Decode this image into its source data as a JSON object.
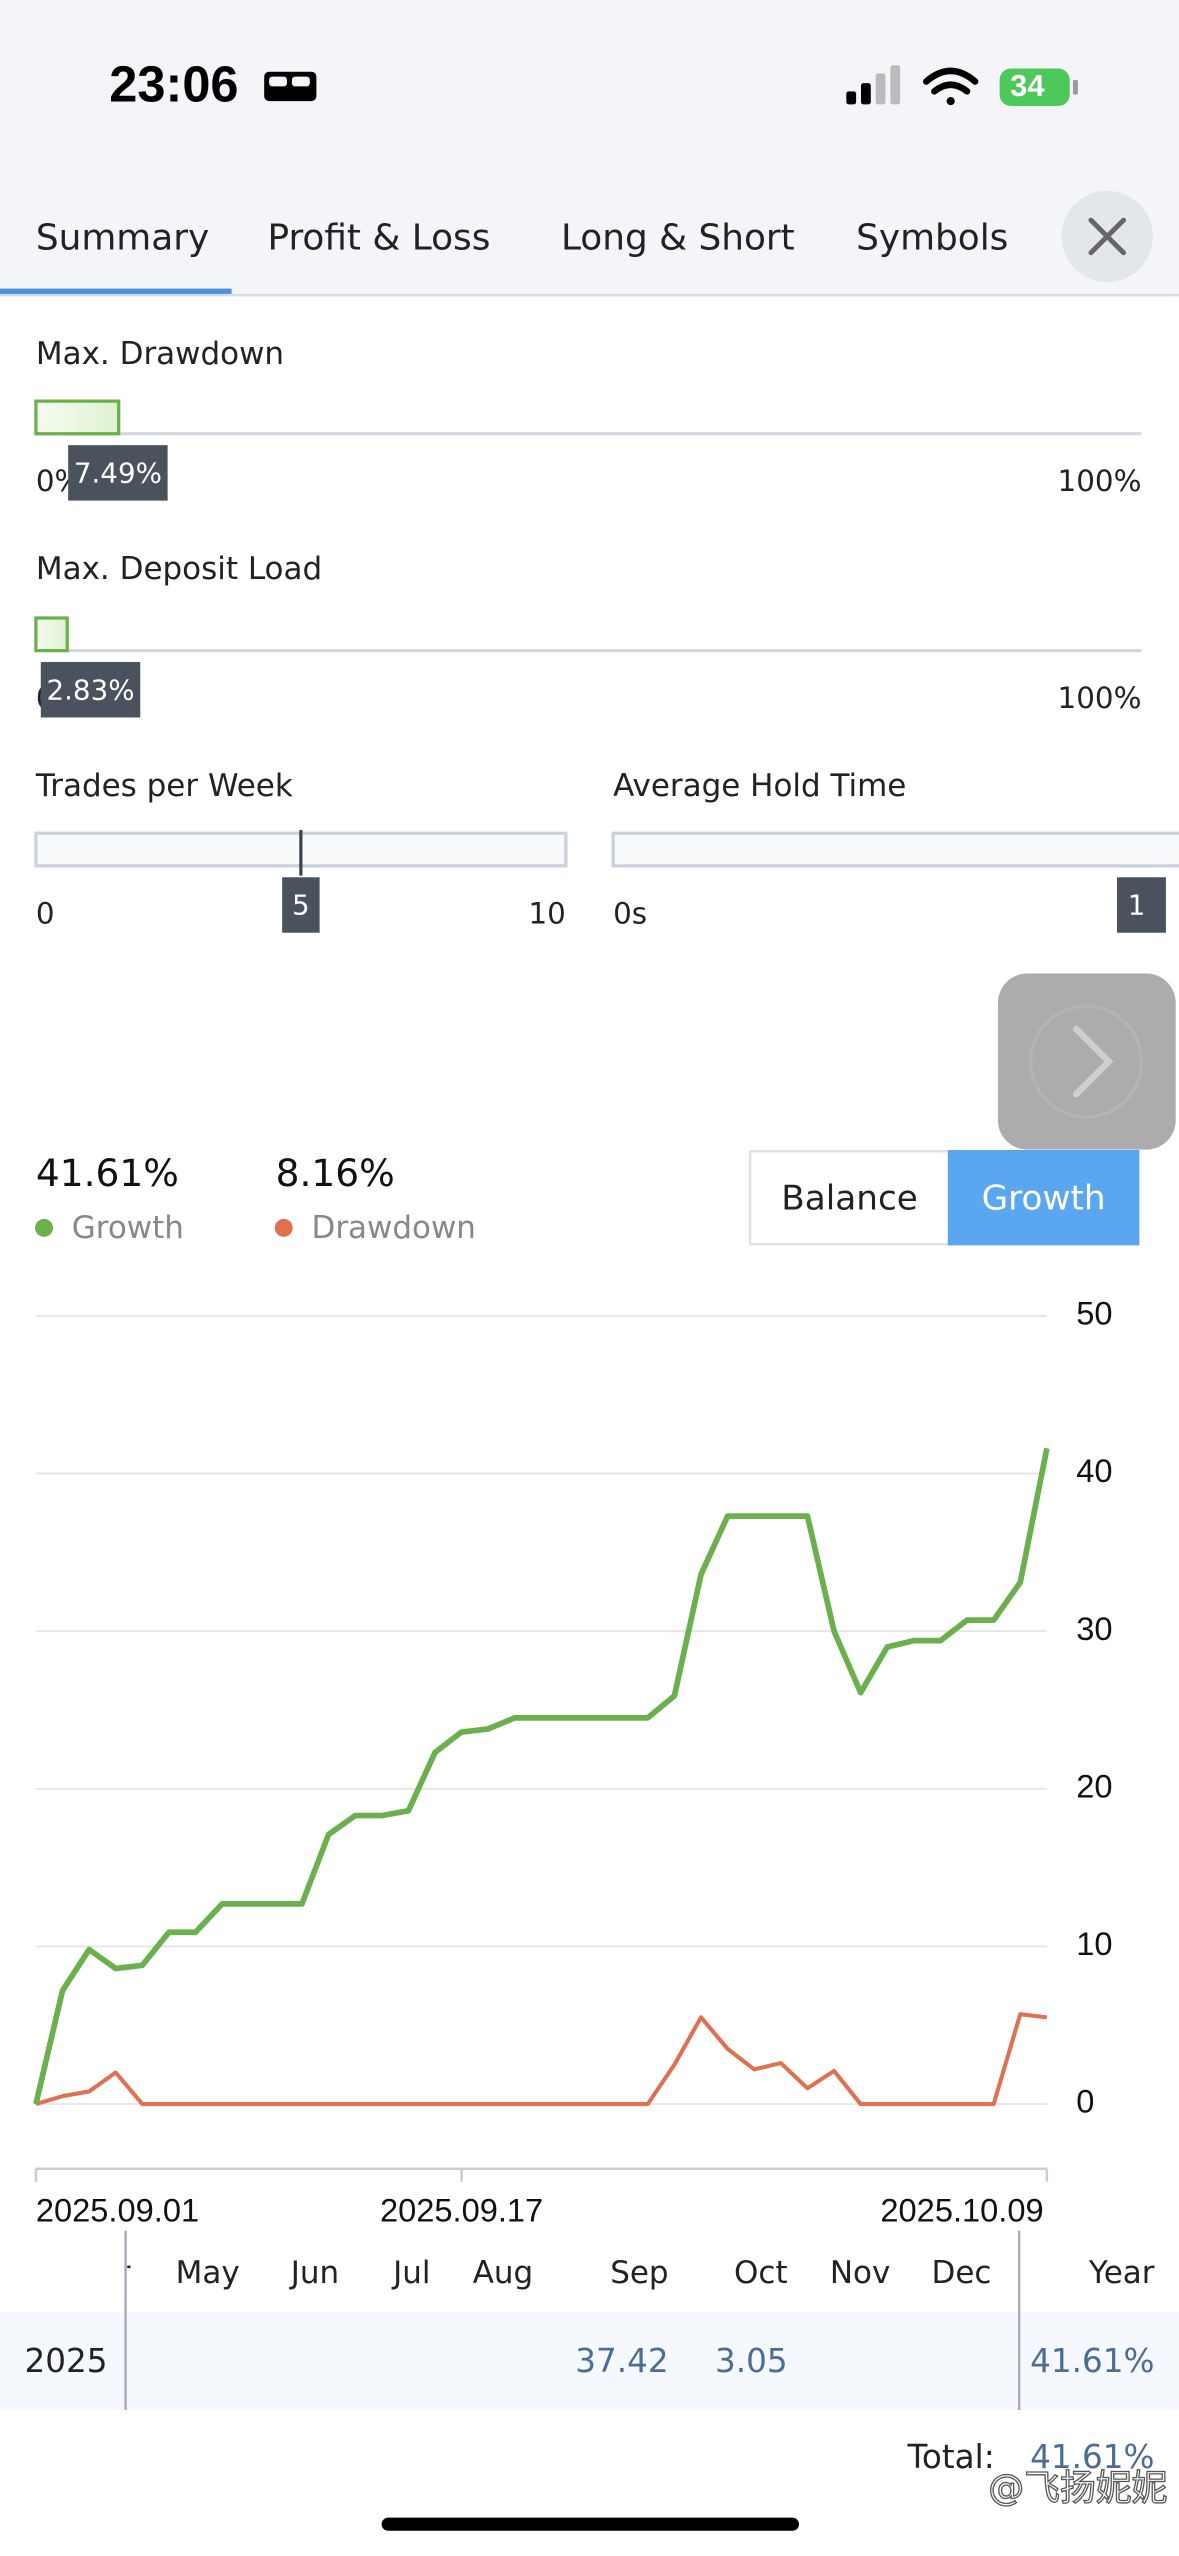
{
  "status_bar": {
    "time": "23:06",
    "battery": "34"
  },
  "tabs": [
    "Summary",
    "Profit & Loss",
    "Long & Short",
    "Symbols"
  ],
  "active_tab": 0,
  "sliders": [
    {
      "label": "Max. Drawdown",
      "value": 7.49,
      "value_label": "7.49%",
      "ticks": [
        {
          "value": 0,
          "label": "0%"
        },
        {
          "value": 100,
          "label": "100%"
        }
      ]
    },
    {
      "label": "Max. Deposit Load",
      "value": 2.83,
      "value_label": "2.83%",
      "ticks": [
        {
          "value": 0,
          "label": "0%"
        },
        {
          "value": 100,
          "label": "100%"
        }
      ]
    },
    {
      "label": "Trades per Week",
      "value": 5,
      "ticks": [
        0,
        10
      ]
    },
    {
      "label": "Average Hold Time",
      "tooltip": "1",
      "ticks": [
        {
          "value": 0,
          "label": "0s"
        }
      ]
    }
  ],
  "toggle": {
    "options": [
      "Balance",
      "Growth"
    ],
    "active": 1
  },
  "chart": {
    "type": "line",
    "x": [
      "2025.09.01",
      "2025.09.02",
      "2025.09.03",
      "2025.09.04",
      "2025.09.05",
      "2025.09.06",
      "2025.09.07",
      "2025.09.08",
      "2025.09.09",
      "2025.09.10",
      "2025.09.11",
      "2025.09.12",
      "2025.09.13",
      "2025.09.14",
      "2025.09.15",
      "2025.09.16",
      "2025.09.17",
      "2025.09.18",
      "2025.09.19",
      "2025.09.20",
      "2025.09.21",
      "2025.09.22",
      "2025.09.23",
      "2025.09.24",
      "2025.09.25",
      "2025.09.26",
      "2025.09.27",
      "2025.09.28",
      "2025.09.29",
      "2025.09.30",
      "2025.10.01",
      "2025.10.02",
      "2025.10.03",
      "2025.10.04",
      "2025.10.05",
      "2025.10.06",
      "2025.10.07",
      "2025.10.08",
      "2025.10.09"
    ],
    "xlim": [
      "2025.09.01",
      "2025.10.09"
    ],
    "xticks": [
      "2025.09.01",
      "2025.09.17",
      "2025.10.09"
    ],
    "ylim": [
      -4,
      50
    ],
    "yticks": [
      0,
      10,
      20,
      30,
      40,
      50
    ],
    "grid": true,
    "series": [
      {
        "name": "Growth",
        "color": "#6ab04c",
        "summary": 41.61,
        "summary_label": "41.61%",
        "values": [
          0,
          7.2,
          9.8,
          8.6,
          8.8,
          10.9,
          10.9,
          12.7,
          12.7,
          12.7,
          12.7,
          17.1,
          18.3,
          18.3,
          18.6,
          22.3,
          23.6,
          23.8,
          24.5,
          24.5,
          24.5,
          24.5,
          24.5,
          24.5,
          25.9,
          33.6,
          37.3,
          37.3,
          37.3,
          37.3,
          30.0,
          26.1,
          29.0,
          29.4,
          29.4,
          30.7,
          30.7,
          33.1,
          41.6
        ]
      },
      {
        "name": "Drawdown",
        "color": "#e07050",
        "summary": 8.16,
        "summary_label": "8.16%",
        "values": [
          0,
          0.5,
          0.8,
          2.0,
          0,
          0,
          0,
          0,
          0,
          0,
          0,
          0,
          0,
          0,
          0,
          0,
          0,
          0,
          0,
          0,
          0,
          0,
          0,
          0,
          2.5,
          5.5,
          3.5,
          2.2,
          2.6,
          1.0,
          2.1,
          0,
          0,
          0,
          0,
          0,
          0,
          5.7,
          5.5
        ]
      }
    ]
  },
  "monthly_table": {
    "columns": [
      "Apr",
      "May",
      "Jun",
      "Jul",
      "Aug",
      "Sep",
      "Oct",
      "Nov",
      "Dec",
      "Year"
    ],
    "rows": [
      {
        "year": "2025",
        "cells": [
          null,
          null,
          null,
          null,
          null,
          37.42,
          3.05,
          null,
          null,
          "41.61%"
        ]
      }
    ],
    "total_label": "Total:",
    "total": "41.61%"
  },
  "watermark": "@飞扬妮妮"
}
